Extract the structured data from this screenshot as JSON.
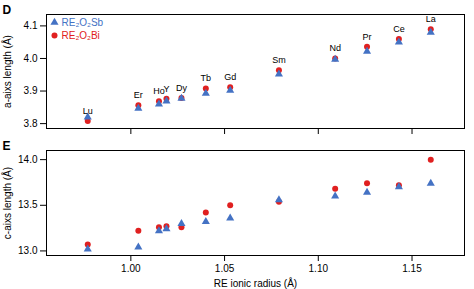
{
  "chart_data": [
    {
      "type": "scatter",
      "title": "D",
      "ylabel": "a-aixs length (Å)",
      "series": [
        {
          "name": "RE₂O₂Bi",
          "color": "#e02020",
          "marker": "circle",
          "x": [
            0.977,
            1.004,
            1.015,
            1.019,
            1.027,
            1.04,
            1.053,
            1.079,
            1.109,
            1.126,
            1.143,
            1.16
          ],
          "values": [
            3.808,
            3.856,
            3.869,
            3.876,
            3.879,
            3.908,
            3.912,
            3.964,
            4.0,
            4.036,
            4.06,
            4.09
          ]
        },
        {
          "name": "RE₂O₂Sb",
          "color": "#4472c4",
          "marker": "triangle",
          "x": [
            0.977,
            1.004,
            1.015,
            1.019,
            1.027,
            1.04,
            1.053,
            1.079,
            1.109,
            1.126,
            1.143,
            1.16
          ],
          "values": [
            3.82,
            3.847,
            3.86,
            3.869,
            3.877,
            3.893,
            3.902,
            3.952,
            3.997,
            4.022,
            4.05,
            4.08
          ]
        }
      ],
      "annotations": [
        {
          "text": "Lu",
          "x": 0.977,
          "y": 3.808
        },
        {
          "text": "Er",
          "x": 1.004,
          "y": 3.856
        },
        {
          "text": "Ho",
          "x": 1.015,
          "y": 3.869
        },
        {
          "text": "Y",
          "x": 1.019,
          "y": 3.876
        },
        {
          "text": "Dy",
          "x": 1.027,
          "y": 3.879
        },
        {
          "text": "Tb",
          "x": 1.04,
          "y": 3.908
        },
        {
          "text": "Gd",
          "x": 1.053,
          "y": 3.912
        },
        {
          "text": "Sm",
          "x": 1.079,
          "y": 3.964
        },
        {
          "text": "Nd",
          "x": 1.109,
          "y": 4.0
        },
        {
          "text": "Pr",
          "x": 1.126,
          "y": 4.036
        },
        {
          "text": "Ce",
          "x": 1.143,
          "y": 4.06
        },
        {
          "text": "La",
          "x": 1.16,
          "y": 4.09
        }
      ],
      "xlim": [
        0.955,
        1.178
      ],
      "xticks": [
        {
          "value": 1.0,
          "label": "1.00"
        },
        {
          "value": 1.05,
          "label": "1.05"
        },
        {
          "value": 1.1,
          "label": "1.10"
        },
        {
          "value": 1.15,
          "label": "1.15"
        }
      ],
      "ylim": [
        3.785,
        4.135
      ],
      "yticks": [
        3.8,
        3.9,
        {
          "value": 4.0,
          "label": "4.0"
        },
        4.1
      ],
      "tick_labels": "y",
      "legend": "upper left",
      "grid": false
    },
    {
      "type": "scatter",
      "title": "E",
      "xlabel": "RE ionic radius (Å)",
      "ylabel": "c-aixs length (Å)",
      "series": [
        {
          "name": "RE₂O₂Bi",
          "color": "#e02020",
          "marker": "circle",
          "x": [
            0.977,
            1.004,
            1.015,
            1.019,
            1.027,
            1.04,
            1.053,
            1.079,
            1.109,
            1.126,
            1.143,
            1.16
          ],
          "values": [
            13.07,
            13.22,
            13.26,
            13.27,
            13.26,
            13.42,
            13.5,
            13.54,
            13.68,
            13.74,
            13.72,
            14.0
          ]
        },
        {
          "name": "RE₂O₂Sb",
          "color": "#4472c4",
          "marker": "triangle",
          "x": [
            0.977,
            1.004,
            1.015,
            1.019,
            1.027,
            1.04,
            1.053,
            1.079,
            1.109,
            1.126,
            1.143,
            1.16
          ],
          "values": [
            13.02,
            13.04,
            13.22,
            13.24,
            13.3,
            13.32,
            13.36,
            13.56,
            13.6,
            13.64,
            13.7,
            13.74
          ]
        }
      ],
      "xlim": [
        0.955,
        1.178
      ],
      "xticks": [
        {
          "value": 1.0,
          "label": "1.00"
        },
        {
          "value": 1.05,
          "label": "1.05"
        },
        {
          "value": 1.1,
          "label": "1.10"
        },
        {
          "value": 1.15,
          "label": "1.15"
        }
      ],
      "ylim": [
        12.95,
        14.1
      ],
      "yticks": [
        {
          "value": 13.0,
          "label": "13.0"
        },
        13.5,
        {
          "value": 14.0,
          "label": "14.0"
        }
      ],
      "grid": false
    }
  ]
}
